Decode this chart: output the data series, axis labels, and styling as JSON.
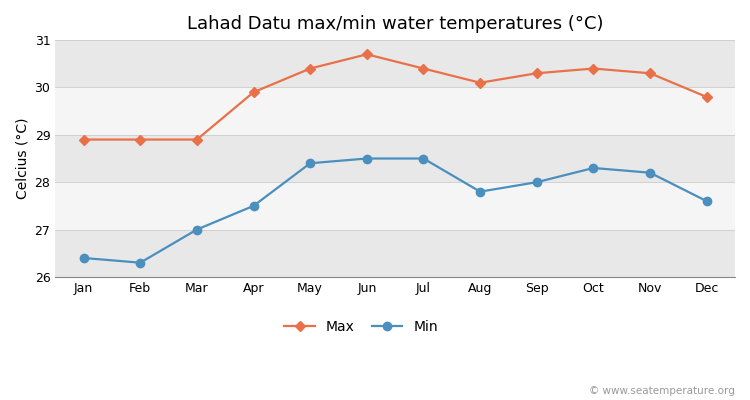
{
  "title": "Lahad Datu max/min water temperatures (°C)",
  "ylabel": "Celcius (°C)",
  "months": [
    "Jan",
    "Feb",
    "Mar",
    "Apr",
    "May",
    "Jun",
    "Jul",
    "Aug",
    "Sep",
    "Oct",
    "Nov",
    "Dec"
  ],
  "max_values": [
    28.9,
    28.9,
    28.9,
    29.9,
    30.4,
    30.7,
    30.4,
    30.1,
    30.3,
    30.4,
    30.3,
    29.8
  ],
  "min_values": [
    26.4,
    26.3,
    27.0,
    27.5,
    28.4,
    28.5,
    28.5,
    27.8,
    28.0,
    28.3,
    28.2,
    27.6
  ],
  "max_color": "#e8714a",
  "min_color": "#4a8fbe",
  "bg_color": "#ffffff",
  "band_colors": [
    "#e8e8e8",
    "#f5f5f5"
  ],
  "ylim": [
    26.0,
    31.0
  ],
  "yticks": [
    26,
    27,
    28,
    29,
    30,
    31
  ],
  "legend_labels": [
    "Max",
    "Min"
  ],
  "watermark": "© www.seatemperature.org",
  "title_fontsize": 13,
  "label_fontsize": 10,
  "tick_fontsize": 9,
  "legend_fontsize": 10,
  "watermark_fontsize": 7.5,
  "line_width": 1.6,
  "max_marker": "D",
  "min_marker": "o",
  "max_marker_size": 5,
  "min_marker_size": 6
}
